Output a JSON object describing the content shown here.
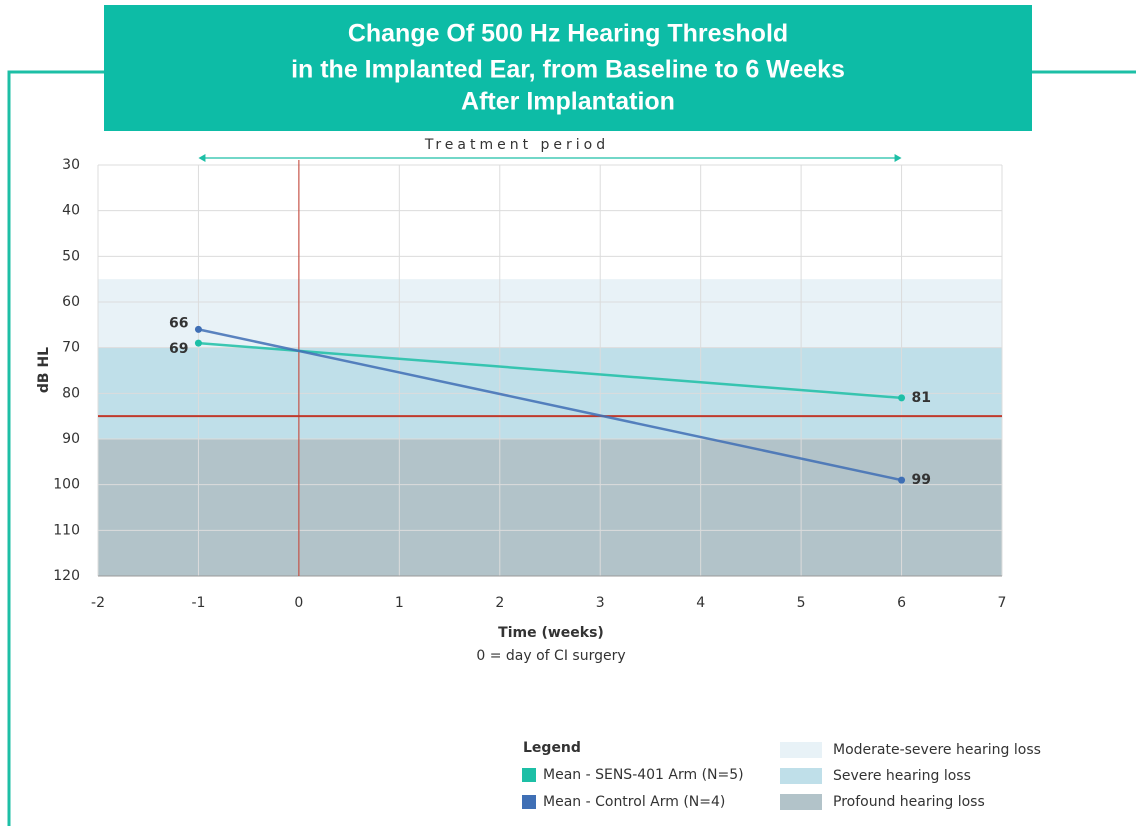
{
  "chart_data": {
    "type": "line",
    "title": [
      "Change Of 500 Hz Hearing Threshold",
      "in the Implanted Ear, from Baseline to 6 Weeks",
      "After Implantation"
    ],
    "x_label": "Time (weeks)",
    "x_sublabel": "0 = day of CI surgery",
    "y_label": "dB HL",
    "x": [
      -1,
      6
    ],
    "series": [
      {
        "name": "Mean - SENS-401 Arm (N=5)",
        "color": "#1dbfa6",
        "values": [
          69,
          81
        ]
      },
      {
        "name": "Mean - Control Arm (N=4)",
        "color": "#3f6fb5",
        "values": [
          66,
          99
        ]
      }
    ],
    "xlim": [
      -2,
      7
    ],
    "xticks": [
      -2,
      -1,
      0,
      1,
      2,
      3,
      4,
      5,
      6,
      7
    ],
    "ylim": [
      30,
      120
    ],
    "yticks": [
      30,
      40,
      50,
      60,
      70,
      80,
      90,
      100,
      110,
      120
    ],
    "y_inverted": true,
    "grid": true,
    "bands": [
      {
        "name": "Moderate-severe hearing loss",
        "from": 55,
        "to": 70,
        "color": "#e8f2f7"
      },
      {
        "name": "Severe hearing loss",
        "from": 70,
        "to": 90,
        "color": "#bfdfe9"
      },
      {
        "name": "Profound hearing loss",
        "from": 90,
        "to": 120,
        "color": "#b2c3c9"
      }
    ],
    "hlines": [
      85
    ],
    "vlines": [
      0
    ],
    "ref_color": "#c0392b",
    "annotation": {
      "text": "Treatment period",
      "from": -1,
      "to": 6
    },
    "legend_title": "Legend"
  }
}
